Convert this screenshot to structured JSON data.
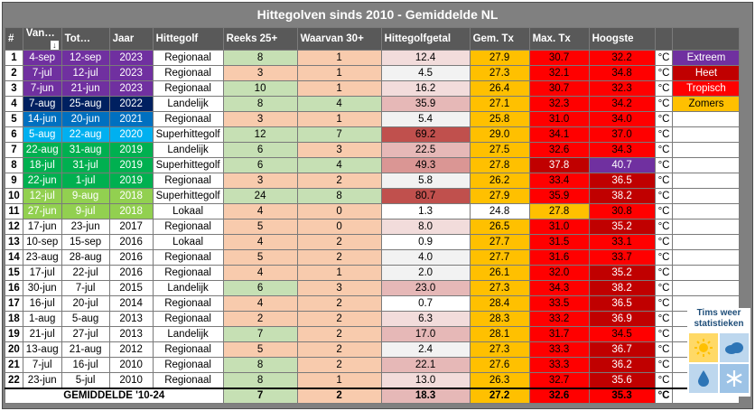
{
  "title": "Hittegolven sinds 2010 - Gemiddelde NL",
  "headers": {
    "idx": "#",
    "start": "Van…",
    "end": "Tot…",
    "year": "Jaar",
    "type": "Hittegolf",
    "streak25": "Reeks 25+",
    "of30": "Waarvan 30+",
    "number": "Hittegolfgetal",
    "meanTx": "Gem. Tx",
    "maxTx": "Max. Tx",
    "highest": "Hoogste"
  },
  "unit": "°C",
  "legend": [
    {
      "label": "Extreem",
      "color": "#7030a0"
    },
    {
      "label": "Heet",
      "color": "#c00000"
    },
    {
      "label": "Tropisch",
      "color": "#ff0000"
    },
    {
      "label": "Zomers",
      "color": "#ffc000"
    }
  ],
  "colors": {
    "purple": "#7030a0",
    "navy": "#002060",
    "blue": "#0070c0",
    "teal": "#00b0f0",
    "green": "#00b050",
    "lightgreen": "#92d050",
    "streak_green": "#c6e0b4",
    "streak_salmon": "#f8cbad",
    "mean_orange": "#ffc000",
    "max_red": "#ff0000",
    "high_red": "#ff0000"
  },
  "rows": [
    {
      "idx": "1",
      "start": "4-sep",
      "end": "12-sep",
      "year": "2023",
      "type": "Regionaal",
      "streak": "8",
      "of30": "1",
      "number": "12.4",
      "mean": "27.9",
      "max": "30.7",
      "high": "32.2",
      "rowc": "#7030a0",
      "sc": "#c6e0b4",
      "oc": "#f8cbad",
      "nc": "#f2dcdb",
      "mc": "#ffc000",
      "xc": "#ff0000",
      "hc": "#ff0000"
    },
    {
      "idx": "2",
      "start": "7-jul",
      "end": "12-jul",
      "year": "2023",
      "type": "Regionaal",
      "streak": "3",
      "of30": "1",
      "number": "4.5",
      "mean": "27.3",
      "max": "32.1",
      "high": "34.8",
      "rowc": "#7030a0",
      "sc": "#f8cbad",
      "oc": "#f8cbad",
      "nc": "#f2f2f2",
      "mc": "#ffc000",
      "xc": "#ff0000",
      "hc": "#ff0000"
    },
    {
      "idx": "3",
      "start": "7-jun",
      "end": "21-jun",
      "year": "2023",
      "type": "Regionaal",
      "streak": "10",
      "of30": "1",
      "number": "16.2",
      "mean": "26.4",
      "max": "30.7",
      "high": "32.3",
      "rowc": "#7030a0",
      "sc": "#c6e0b4",
      "oc": "#f8cbad",
      "nc": "#f2dcdb",
      "mc": "#ffc000",
      "xc": "#ff0000",
      "hc": "#ff0000"
    },
    {
      "idx": "4",
      "start": "7-aug",
      "end": "25-aug",
      "year": "2022",
      "type": "Landelijk",
      "streak": "8",
      "of30": "4",
      "number": "35.9",
      "mean": "27.1",
      "max": "32.3",
      "high": "34.2",
      "rowc": "#002060",
      "sc": "#c6e0b4",
      "oc": "#c6e0b4",
      "nc": "#e6b8b7",
      "mc": "#ffc000",
      "xc": "#ff0000",
      "hc": "#ff0000"
    },
    {
      "idx": "5",
      "start": "14-jun",
      "end": "20-jun",
      "year": "2021",
      "type": "Regionaal",
      "streak": "3",
      "of30": "1",
      "number": "5.4",
      "mean": "25.8",
      "max": "31.0",
      "high": "34.0",
      "rowc": "#0070c0",
      "sc": "#f8cbad",
      "oc": "#f8cbad",
      "nc": "#f2f2f2",
      "mc": "#ffc000",
      "xc": "#ff0000",
      "hc": "#ff0000"
    },
    {
      "idx": "6",
      "start": "5-aug",
      "end": "22-aug",
      "year": "2020",
      "type": "Superhittegolf",
      "streak": "12",
      "of30": "7",
      "number": "69.2",
      "mean": "29.0",
      "max": "34.1",
      "high": "37.0",
      "rowc": "#00b0f0",
      "sc": "#c6e0b4",
      "oc": "#c6e0b4",
      "nc": "#c0504d",
      "mc": "#ffc000",
      "xc": "#ff0000",
      "hc": "#ff0000"
    },
    {
      "idx": "7",
      "start": "22-aug",
      "end": "31-aug",
      "year": "2019",
      "type": "Landelijk",
      "streak": "6",
      "of30": "3",
      "number": "22.5",
      "mean": "27.5",
      "max": "32.6",
      "high": "34.3",
      "rowc": "#00b050",
      "sc": "#c6e0b4",
      "oc": "#f8cbad",
      "nc": "#e6b8b7",
      "mc": "#ffc000",
      "xc": "#ff0000",
      "hc": "#ff0000"
    },
    {
      "idx": "8",
      "start": "18-jul",
      "end": "31-jul",
      "year": "2019",
      "type": "Superhittegolf",
      "streak": "6",
      "of30": "4",
      "number": "49.3",
      "mean": "27.8",
      "max": "37.8",
      "high": "40.7",
      "rowc": "#00b050",
      "sc": "#c6e0b4",
      "oc": "#c6e0b4",
      "nc": "#da9694",
      "mc": "#ffc000",
      "xc": "#c00000",
      "hc": "#7030a0"
    },
    {
      "idx": "9",
      "start": "22-jun",
      "end": "1-jul",
      "year": "2019",
      "type": "Regionaal",
      "streak": "3",
      "of30": "2",
      "number": "5.8",
      "mean": "26.2",
      "max": "33.4",
      "high": "36.5",
      "rowc": "#00b050",
      "sc": "#f8cbad",
      "oc": "#f8cbad",
      "nc": "#f2f2f2",
      "mc": "#ffc000",
      "xc": "#ff0000",
      "hc": "#c00000"
    },
    {
      "idx": "10",
      "start": "12-jul",
      "end": "9-aug",
      "year": "2018",
      "type": "Superhittegolf",
      "streak": "24",
      "of30": "8",
      "number": "80.7",
      "mean": "27.9",
      "max": "35.9",
      "high": "38.2",
      "rowc": "#92d050",
      "sc": "#c6e0b4",
      "oc": "#c6e0b4",
      "nc": "#c0504d",
      "mc": "#ffc000",
      "xc": "#ff0000",
      "hc": "#c00000"
    },
    {
      "idx": "11",
      "start": "27-jun",
      "end": "9-jul",
      "year": "2018",
      "type": "Lokaal",
      "streak": "4",
      "of30": "0",
      "number": "1.3",
      "mean": "24.8",
      "max": "27.8",
      "high": "30.8",
      "rowc": "#92d050",
      "sc": "#f8cbad",
      "oc": "#f8cbad",
      "nc": "#ffffff",
      "mc": "#ffffff",
      "xc": "#ffc000",
      "hc": "#ff0000"
    },
    {
      "idx": "12",
      "start": "17-jun",
      "end": "23-jun",
      "year": "2017",
      "type": "Regionaal",
      "streak": "5",
      "of30": "0",
      "number": "8.0",
      "mean": "26.5",
      "max": "31.0",
      "high": "35.2",
      "rowc": "#ffffff",
      "sc": "#f8cbad",
      "oc": "#f8cbad",
      "nc": "#f2dcdb",
      "mc": "#ffc000",
      "xc": "#ff0000",
      "hc": "#c00000"
    },
    {
      "idx": "13",
      "start": "10-sep",
      "end": "15-sep",
      "year": "2016",
      "type": "Lokaal",
      "streak": "4",
      "of30": "2",
      "number": "0.9",
      "mean": "27.7",
      "max": "31.5",
      "high": "33.1",
      "rowc": "#ffffff",
      "sc": "#f8cbad",
      "oc": "#f8cbad",
      "nc": "#ffffff",
      "mc": "#ffc000",
      "xc": "#ff0000",
      "hc": "#ff0000"
    },
    {
      "idx": "14",
      "start": "23-aug",
      "end": "28-aug",
      "year": "2016",
      "type": "Regionaal",
      "streak": "5",
      "of30": "2",
      "number": "4.0",
      "mean": "27.7",
      "max": "31.6",
      "high": "33.7",
      "rowc": "#ffffff",
      "sc": "#f8cbad",
      "oc": "#f8cbad",
      "nc": "#f2f2f2",
      "mc": "#ffc000",
      "xc": "#ff0000",
      "hc": "#ff0000"
    },
    {
      "idx": "15",
      "start": "17-jul",
      "end": "22-jul",
      "year": "2016",
      "type": "Regionaal",
      "streak": "4",
      "of30": "1",
      "number": "2.0",
      "mean": "26.1",
      "max": "32.0",
      "high": "35.2",
      "rowc": "#ffffff",
      "sc": "#f8cbad",
      "oc": "#f8cbad",
      "nc": "#f2f2f2",
      "mc": "#ffc000",
      "xc": "#ff0000",
      "hc": "#c00000"
    },
    {
      "idx": "16",
      "start": "30-jun",
      "end": "7-jul",
      "year": "2015",
      "type": "Landelijk",
      "streak": "6",
      "of30": "3",
      "number": "23.0",
      "mean": "27.3",
      "max": "34.3",
      "high": "38.2",
      "rowc": "#ffffff",
      "sc": "#c6e0b4",
      "oc": "#f8cbad",
      "nc": "#e6b8b7",
      "mc": "#ffc000",
      "xc": "#ff0000",
      "hc": "#c00000"
    },
    {
      "idx": "17",
      "start": "16-jul",
      "end": "20-jul",
      "year": "2014",
      "type": "Regionaal",
      "streak": "4",
      "of30": "2",
      "number": "0.7",
      "mean": "28.4",
      "max": "33.5",
      "high": "36.5",
      "rowc": "#ffffff",
      "sc": "#f8cbad",
      "oc": "#f8cbad",
      "nc": "#ffffff",
      "mc": "#ffc000",
      "xc": "#ff0000",
      "hc": "#c00000"
    },
    {
      "idx": "18",
      "start": "1-aug",
      "end": "5-aug",
      "year": "2013",
      "type": "Regionaal",
      "streak": "2",
      "of30": "2",
      "number": "6.3",
      "mean": "28.3",
      "max": "33.2",
      "high": "36.9",
      "rowc": "#ffffff",
      "sc": "#f8cbad",
      "oc": "#f8cbad",
      "nc": "#f2dcdb",
      "mc": "#ffc000",
      "xc": "#ff0000",
      "hc": "#c00000"
    },
    {
      "idx": "19",
      "start": "21-jul",
      "end": "27-jul",
      "year": "2013",
      "type": "Landelijk",
      "streak": "7",
      "of30": "2",
      "number": "17.0",
      "mean": "28.1",
      "max": "31.7",
      "high": "34.5",
      "rowc": "#ffffff",
      "sc": "#c6e0b4",
      "oc": "#f8cbad",
      "nc": "#e6b8b7",
      "mc": "#ffc000",
      "xc": "#ff0000",
      "hc": "#ff0000"
    },
    {
      "idx": "20",
      "start": "13-aug",
      "end": "21-aug",
      "year": "2012",
      "type": "Regionaal",
      "streak": "5",
      "of30": "2",
      "number": "2.4",
      "mean": "27.3",
      "max": "33.3",
      "high": "36.7",
      "rowc": "#ffffff",
      "sc": "#f8cbad",
      "oc": "#f8cbad",
      "nc": "#f2f2f2",
      "mc": "#ffc000",
      "xc": "#ff0000",
      "hc": "#c00000"
    },
    {
      "idx": "21",
      "start": "7-jul",
      "end": "16-jul",
      "year": "2010",
      "type": "Regionaal",
      "streak": "8",
      "of30": "2",
      "number": "22.1",
      "mean": "27.6",
      "max": "33.3",
      "high": "36.2",
      "rowc": "#ffffff",
      "sc": "#c6e0b4",
      "oc": "#f8cbad",
      "nc": "#e6b8b7",
      "mc": "#ffc000",
      "xc": "#ff0000",
      "hc": "#c00000"
    },
    {
      "idx": "22",
      "start": "23-jun",
      "end": "5-jul",
      "year": "2010",
      "type": "Regionaal",
      "streak": "8",
      "of30": "1",
      "number": "13.0",
      "mean": "26.3",
      "max": "32.7",
      "high": "35.6",
      "rowc": "#ffffff",
      "sc": "#c6e0b4",
      "oc": "#f8cbad",
      "nc": "#f2dcdb",
      "mc": "#ffc000",
      "xc": "#ff0000",
      "hc": "#c00000"
    }
  ],
  "average": {
    "label": "GEMIDDELDE '10-24",
    "streak": "7",
    "of30": "2",
    "number": "18.3",
    "mean": "27.2",
    "max": "32.6",
    "high": "35.3"
  },
  "logo": {
    "line1": "Tims weer",
    "line2": "statistieken"
  }
}
